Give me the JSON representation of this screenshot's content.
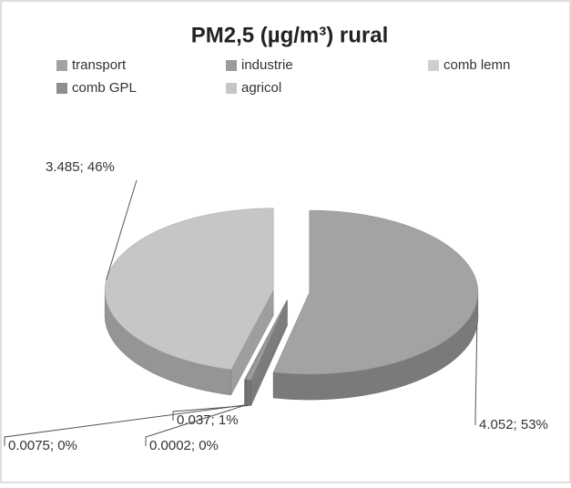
{
  "chart_data": {
    "type": "pie3d",
    "title": "PM2,5 (µg/m³) rural",
    "categories": [
      "transport",
      "industrie",
      "comb lemn",
      "comb GPL",
      "agricol"
    ],
    "values": [
      4.052,
      0.037,
      0.0002,
      0.0075,
      3.485
    ],
    "value_labels": [
      "4.052; 53%",
      "0.037; 1%",
      "0.0002; 0%",
      "0.0075; 0%",
      "3.485; 46%"
    ],
    "colors": [
      "#a3a3a3",
      "#9b9b9b",
      "#cfcfcf",
      "#8e8e8e",
      "#c6c6c6"
    ],
    "legend": "top"
  }
}
